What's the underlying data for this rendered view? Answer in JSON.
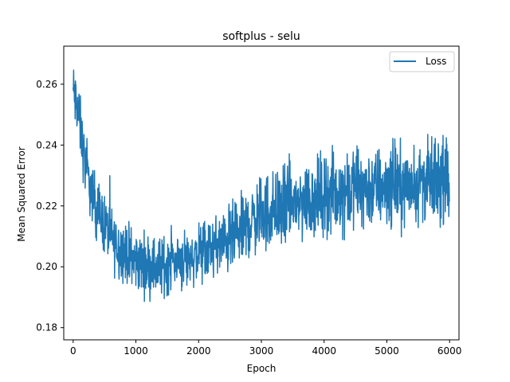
{
  "chart_data": {
    "type": "line",
    "title": "softplus - selu",
    "xlabel": "Epoch",
    "ylabel": "Mean Squared Error",
    "xlim": [
      -150,
      6150
    ],
    "ylim": [
      0.176,
      0.2725
    ],
    "xticks": [
      0,
      1000,
      2000,
      3000,
      4000,
      5000,
      6000
    ],
    "xtick_labels": [
      "0",
      "1000",
      "2000",
      "3000",
      "4000",
      "5000",
      "6000"
    ],
    "yticks": [
      0.18,
      0.2,
      0.22,
      0.24,
      0.26
    ],
    "ytick_labels": [
      "0.18",
      "0.20",
      "0.22",
      "0.24",
      "0.26"
    ],
    "grid": false,
    "legend_position": "top-right",
    "series": [
      {
        "name": "Loss",
        "color": "#1f77b4",
        "x": [
          0,
          20,
          40,
          60,
          80,
          100,
          125,
          150,
          175,
          200,
          250,
          300,
          350,
          400,
          450,
          500,
          550,
          600,
          650,
          700,
          800,
          900,
          1000,
          1100,
          1200,
          1300,
          1400,
          1500,
          1600,
          1700,
          1800,
          1900,
          2000,
          2100,
          2200,
          2300,
          2400,
          2500,
          2600,
          2700,
          2800,
          2900,
          3000,
          3100,
          3200,
          3300,
          3400,
          3500,
          3600,
          3700,
          3800,
          3900,
          4000,
          4100,
          4200,
          4300,
          4400,
          4500,
          4600,
          4700,
          4800,
          4900,
          5000,
          5100,
          5200,
          5300,
          5400,
          5500,
          5600,
          5700,
          5800,
          5900,
          6000
        ],
        "y": [
          0.258,
          0.256,
          0.254,
          0.253,
          0.251,
          0.248,
          0.244,
          0.24,
          0.236,
          0.233,
          0.228,
          0.224,
          0.221,
          0.218,
          0.216,
          0.214,
          0.212,
          0.21,
          0.208,
          0.207,
          0.205,
          0.203,
          0.202,
          0.201,
          0.201,
          0.2,
          0.2,
          0.201,
          0.202,
          0.202,
          0.203,
          0.203,
          0.204,
          0.205,
          0.206,
          0.207,
          0.208,
          0.209,
          0.21,
          0.212,
          0.214,
          0.216,
          0.217,
          0.218,
          0.219,
          0.219,
          0.22,
          0.221,
          0.221,
          0.222,
          0.222,
          0.223,
          0.224,
          0.224,
          0.224,
          0.225,
          0.225,
          0.226,
          0.226,
          0.226,
          0.226,
          0.226,
          0.227,
          0.227,
          0.227,
          0.227,
          0.227,
          0.228,
          0.228,
          0.228,
          0.228,
          0.228,
          0.228
        ],
        "noise_amplitude": [
          0.006,
          0.006,
          0.006,
          0.006,
          0.006,
          0.006,
          0.006,
          0.006,
          0.006,
          0.006,
          0.006,
          0.006,
          0.006,
          0.006,
          0.006,
          0.006,
          0.006,
          0.006,
          0.006,
          0.006,
          0.006,
          0.006,
          0.006,
          0.006,
          0.006,
          0.006,
          0.006,
          0.006,
          0.006,
          0.006,
          0.006,
          0.006,
          0.006,
          0.006,
          0.006,
          0.006,
          0.006,
          0.007,
          0.007,
          0.007,
          0.007,
          0.007,
          0.008,
          0.008,
          0.008,
          0.008,
          0.008,
          0.008,
          0.008,
          0.008,
          0.008,
          0.008,
          0.008,
          0.008,
          0.008,
          0.008,
          0.008,
          0.008,
          0.008,
          0.008,
          0.008,
          0.008,
          0.008,
          0.008,
          0.008,
          0.008,
          0.008,
          0.008,
          0.008,
          0.008,
          0.008,
          0.008,
          0.008
        ]
      }
    ]
  }
}
